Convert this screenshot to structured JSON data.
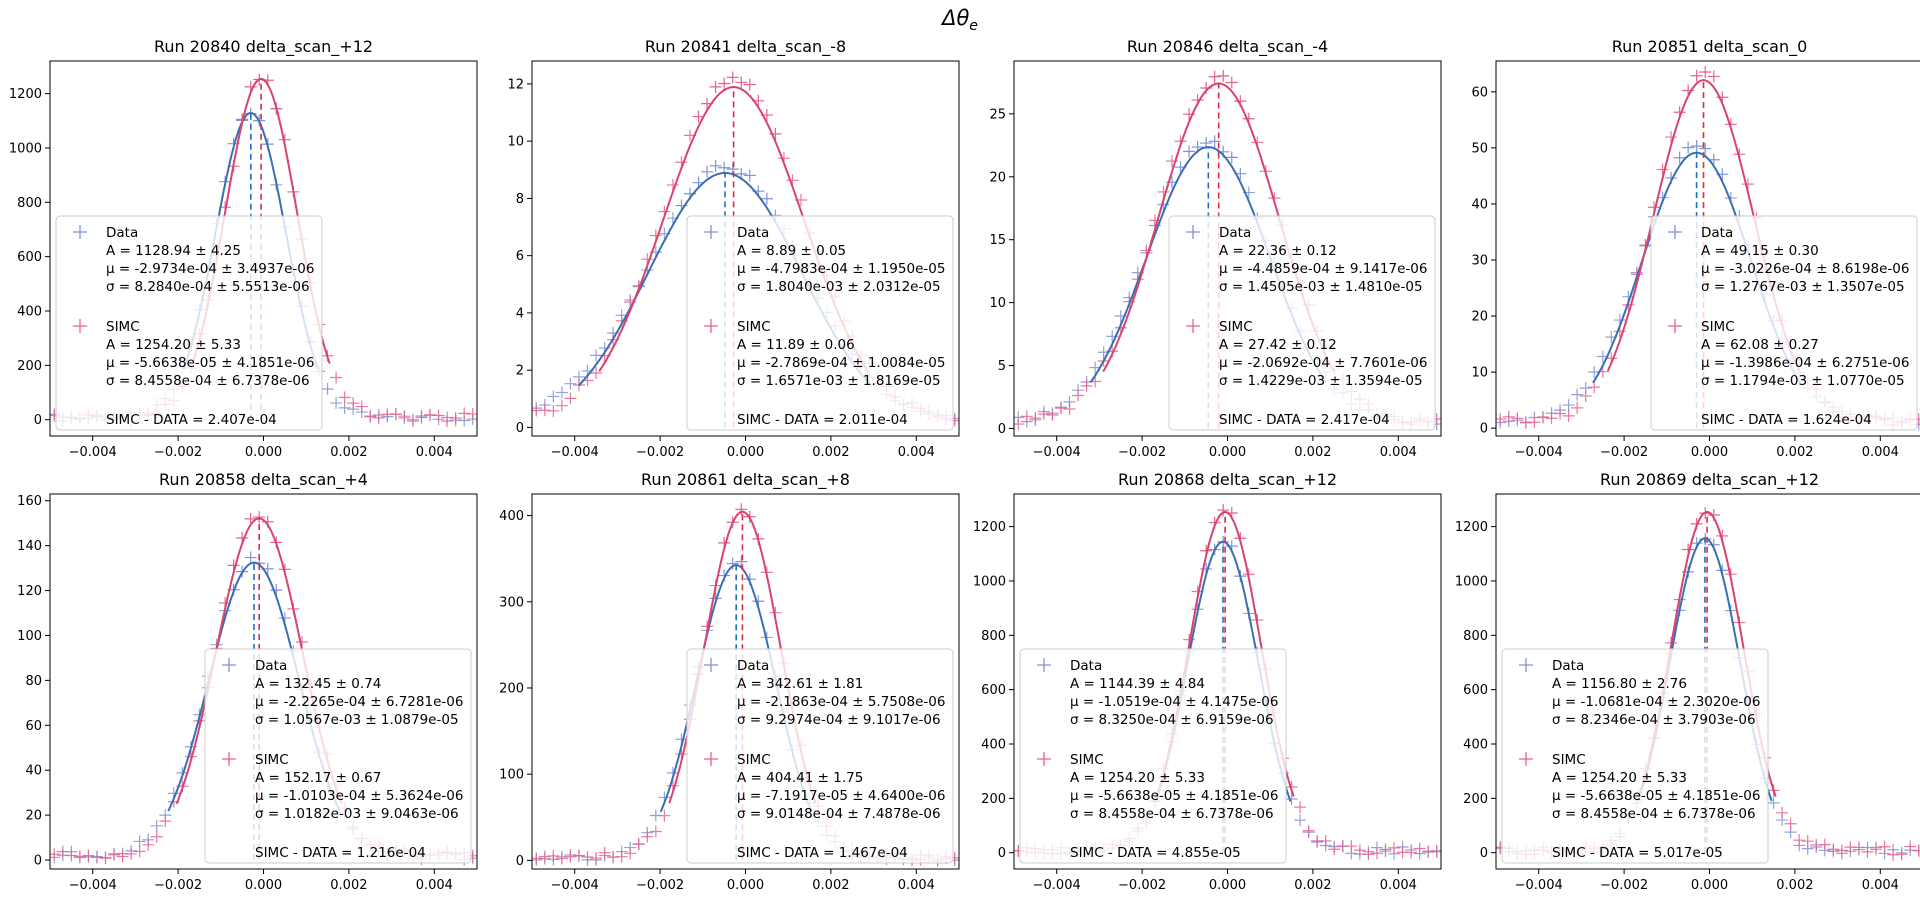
{
  "figure": {
    "suptitle": "Δθ_e",
    "suptitle_main": "Δθ",
    "suptitle_sub": "e"
  },
  "chart_data": [
    {
      "type": "scatter",
      "title": "Run 20840 delta_scan_+12",
      "xlim": [
        -0.005,
        0.005
      ],
      "ylim": [
        -60,
        1320
      ],
      "yticks": [
        0,
        200,
        400,
        600,
        800,
        1000,
        1200
      ],
      "xticks": [
        -0.004,
        -0.002,
        0.0,
        0.002,
        0.004
      ],
      "xtick_labels": [
        "−0.004",
        "−0.002",
        "0.000",
        "0.002",
        "0.004"
      ],
      "legend_loc": "lower-left",
      "series": [
        {
          "name": "Data",
          "A": 1128.94,
          "mu": -0.00029734,
          "sigma": 0.0008284,
          "baseline": 8,
          "lines": [
            "A = 1128.94 ± 4.25",
            "μ = -2.9734e-04 ± 3.4937e-06",
            "σ = 8.2840e-04 ± 5.5513e-06"
          ]
        },
        {
          "name": "SIMC",
          "A": 1254.2,
          "mu": -5.6638e-05,
          "sigma": 0.00084558,
          "baseline": 8,
          "lines": [
            "A = 1254.20 ± 5.33",
            "μ = -5.6638e-05 ± 4.1851e-06",
            "σ = 8.4558e-04 ± 6.7378e-06"
          ]
        }
      ],
      "diff_text": "SIMC - DATA = 2.407e-04"
    },
    {
      "type": "scatter",
      "title": "Run 20841 delta_scan_-8",
      "xlim": [
        -0.005,
        0.005
      ],
      "ylim": [
        -0.3,
        12.8
      ],
      "yticks": [
        0,
        2,
        4,
        6,
        8,
        10,
        12
      ],
      "xticks": [
        -0.004,
        -0.002,
        0.0,
        0.002,
        0.004
      ],
      "xtick_labels": [
        "−0.004",
        "−0.002",
        "0.000",
        "0.002",
        "0.004"
      ],
      "legend_loc": "lower-right",
      "series": [
        {
          "name": "Data",
          "A": 8.89,
          "mu": -0.00047983,
          "sigma": 0.001804,
          "baseline": 0.25,
          "lines": [
            "A = 8.89 ± 0.05",
            "μ = -4.7983e-04 ± 1.1950e-05",
            "σ = 1.8040e-03 ± 2.0312e-05"
          ]
        },
        {
          "name": "SIMC",
          "A": 11.89,
          "mu": -0.00027869,
          "sigma": 0.0016571,
          "baseline": 0.25,
          "lines": [
            "A = 11.89 ± 0.06",
            "μ = -2.7869e-04 ± 1.0084e-05",
            "σ = 1.6571e-03 ± 1.8169e-05"
          ]
        }
      ],
      "diff_text": "SIMC - DATA = 2.011e-04"
    },
    {
      "type": "scatter",
      "title": "Run 20846 delta_scan_-4",
      "xlim": [
        -0.005,
        0.005
      ],
      "ylim": [
        -0.6,
        29.2
      ],
      "yticks": [
        0,
        5,
        10,
        15,
        20,
        25
      ],
      "xticks": [
        -0.004,
        -0.002,
        0.0,
        0.002,
        0.004
      ],
      "xtick_labels": [
        "−0.004",
        "−0.002",
        "0.000",
        "0.002",
        "0.004"
      ],
      "legend_loc": "lower-right",
      "series": [
        {
          "name": "Data",
          "A": 22.36,
          "mu": -0.00044859,
          "sigma": 0.0014505,
          "baseline": 0.5,
          "lines": [
            "A = 22.36 ± 0.12",
            "μ = -4.4859e-04 ± 9.1417e-06",
            "σ = 1.4505e-03 ± 1.4810e-05"
          ]
        },
        {
          "name": "SIMC",
          "A": 27.42,
          "mu": -0.00020692,
          "sigma": 0.0014229,
          "baseline": 0.5,
          "lines": [
            "A = 27.42 ± 0.12",
            "μ = -2.0692e-04 ± 7.7601e-06",
            "σ = 1.4229e-03 ± 1.3594e-05"
          ]
        }
      ],
      "diff_text": "SIMC - DATA = 2.417e-04"
    },
    {
      "type": "scatter",
      "title": "Run 20851 delta_scan_0",
      "xlim": [
        -0.005,
        0.005
      ],
      "ylim": [
        -1.4,
        65.5
      ],
      "yticks": [
        0,
        10,
        20,
        30,
        40,
        50,
        60
      ],
      "xticks": [
        -0.004,
        -0.002,
        0.0,
        0.002,
        0.004
      ],
      "xtick_labels": [
        "−0.004",
        "−0.002",
        "0.000",
        "0.002",
        "0.004"
      ],
      "legend_loc": "lower-right",
      "series": [
        {
          "name": "Data",
          "A": 49.15,
          "mu": -0.00030226,
          "sigma": 0.0012767,
          "baseline": 1.2,
          "lines": [
            "A = 49.15 ± 0.30",
            "μ = -3.0226e-04 ± 8.6198e-06",
            "σ = 1.2767e-03 ± 1.3507e-05"
          ]
        },
        {
          "name": "SIMC",
          "A": 62.08,
          "mu": -0.00013986,
          "sigma": 0.0011794,
          "baseline": 1.2,
          "lines": [
            "A = 62.08 ± 0.27",
            "μ = -1.3986e-04 ± 6.2751e-06",
            "σ = 1.1794e-03 ± 1.0770e-05"
          ]
        }
      ],
      "diff_text": "SIMC - DATA = 1.624e-04"
    },
    {
      "type": "scatter",
      "title": "Run 20858 delta_scan_+4",
      "xlim": [
        -0.005,
        0.005
      ],
      "ylim": [
        -4,
        163
      ],
      "yticks": [
        0,
        20,
        40,
        60,
        80,
        100,
        120,
        140,
        160
      ],
      "xticks": [
        -0.004,
        -0.002,
        0.0,
        0.002,
        0.004
      ],
      "xtick_labels": [
        "−0.004",
        "−0.002",
        "0.000",
        "0.002",
        "0.004"
      ],
      "legend_loc": "lower-right",
      "series": [
        {
          "name": "Data",
          "A": 132.45,
          "mu": -0.00022265,
          "sigma": 0.0010567,
          "baseline": 2,
          "lines": [
            "A = 132.45 ± 0.74",
            "μ = -2.2265e-04 ± 6.7281e-06",
            "σ = 1.0567e-03 ± 1.0879e-05"
          ]
        },
        {
          "name": "SIMC",
          "A": 152.17,
          "mu": -0.00010103,
          "sigma": 0.0010182,
          "baseline": 2,
          "lines": [
            "A = 152.17 ± 0.67",
            "μ = -1.0103e-04 ± 5.3624e-06",
            "σ = 1.0182e-03 ± 9.0463e-06"
          ]
        }
      ],
      "diff_text": "SIMC - DATA = 1.216e-04"
    },
    {
      "type": "scatter",
      "title": "Run 20861 delta_scan_+8",
      "xlim": [
        -0.005,
        0.005
      ],
      "ylim": [
        -10,
        425
      ],
      "yticks": [
        0,
        100,
        200,
        300,
        400
      ],
      "xticks": [
        -0.004,
        -0.002,
        0.0,
        0.002,
        0.004
      ],
      "xtick_labels": [
        "−0.004",
        "−0.002",
        "0.000",
        "0.002",
        "0.004"
      ],
      "legend_loc": "lower-right",
      "series": [
        {
          "name": "Data",
          "A": 342.61,
          "mu": -0.00021863,
          "sigma": 0.00092974,
          "baseline": 4,
          "lines": [
            "A = 342.61 ± 1.81",
            "μ = -2.1863e-04 ± 5.7508e-06",
            "σ = 9.2974e-04 ± 9.1017e-06"
          ]
        },
        {
          "name": "SIMC",
          "A": 404.41,
          "mu": -7.1917e-05,
          "sigma": 0.00090148,
          "baseline": 4,
          "lines": [
            "A = 404.41 ± 1.75",
            "μ = -7.1917e-05 ± 4.6400e-06",
            "σ = 9.0148e-04 ± 7.4878e-06"
          ]
        }
      ],
      "diff_text": "SIMC - DATA = 1.467e-04"
    },
    {
      "type": "scatter",
      "title": "Run 20868 delta_scan_+12",
      "xlim": [
        -0.005,
        0.005
      ],
      "ylim": [
        -60,
        1320
      ],
      "yticks": [
        0,
        200,
        400,
        600,
        800,
        1000,
        1200
      ],
      "xticks": [
        -0.004,
        -0.002,
        0.0,
        0.002,
        0.004
      ],
      "xtick_labels": [
        "−0.004",
        "−0.002",
        "0.000",
        "0.002",
        "0.004"
      ],
      "legend_loc": "lower-left",
      "series": [
        {
          "name": "Data",
          "A": 1144.39,
          "mu": -0.00010519,
          "sigma": 0.0008325,
          "baseline": 8,
          "lines": [
            "A = 1144.39 ± 4.84",
            "μ = -1.0519e-04 ± 4.1475e-06",
            "σ = 8.3250e-04 ± 6.9159e-06"
          ]
        },
        {
          "name": "SIMC",
          "A": 1254.2,
          "mu": -5.6638e-05,
          "sigma": 0.00084558,
          "baseline": 8,
          "lines": [
            "A = 1254.20 ± 5.33",
            "μ = -5.6638e-05 ± 4.1851e-06",
            "σ = 8.4558e-04 ± 6.7378e-06"
          ]
        }
      ],
      "diff_text": "SIMC - DATA = 4.855e-05"
    },
    {
      "type": "scatter",
      "title": "Run 20869 delta_scan_+12",
      "xlim": [
        -0.005,
        0.005
      ],
      "ylim": [
        -60,
        1320
      ],
      "yticks": [
        0,
        200,
        400,
        600,
        800,
        1000,
        1200
      ],
      "xticks": [
        -0.004,
        -0.002,
        0.0,
        0.002,
        0.004
      ],
      "xtick_labels": [
        "−0.004",
        "−0.002",
        "0.000",
        "0.002",
        "0.004"
      ],
      "legend_loc": "lower-left",
      "series": [
        {
          "name": "Data",
          "A": 1156.8,
          "mu": -0.00010681,
          "sigma": 0.00082346,
          "baseline": 8,
          "lines": [
            "A = 1156.80 ± 2.76",
            "μ = -1.0681e-04 ± 2.3020e-06",
            "σ = 8.2346e-04 ± 3.7903e-06"
          ]
        },
        {
          "name": "SIMC",
          "A": 1254.2,
          "mu": -5.6638e-05,
          "sigma": 0.00084558,
          "baseline": 8,
          "lines": [
            "A = 1254.20 ± 5.33",
            "μ = -5.6638e-05 ± 4.1851e-06",
            "σ = 8.4558e-04 ± 6.7378e-06"
          ]
        }
      ],
      "diff_text": "SIMC - DATA = 5.017e-05"
    }
  ],
  "style": {
    "data_marker_color": "#7f93d6",
    "data_fit_color": "#3a6fb5",
    "data_mean_line_color": "#1f6fc4",
    "simc_marker_color": "#e8608c",
    "simc_fit_color": "#d9436e",
    "simc_mean_line_color": "#d62c4a"
  }
}
